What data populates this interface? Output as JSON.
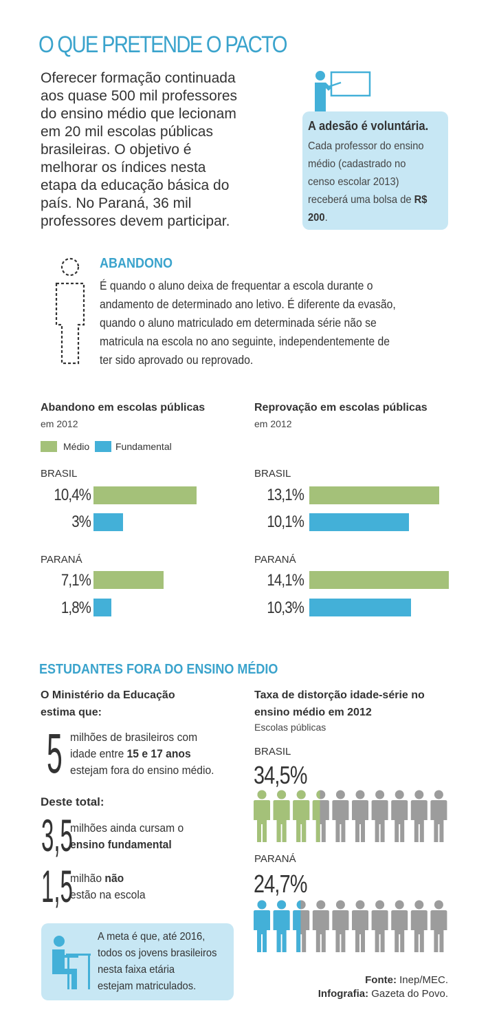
{
  "title": "O QUE PRETENDE O PACTO",
  "intro": {
    "lines": [
      "Oferecer formação continuada",
      "aos quase 500 mil professores",
      "do ensino médio que lecionam",
      "em 20 mil escolas públicas",
      "brasileiras. O objetivo é",
      "melhorar os índices nesta",
      "etapa da educação básica do",
      "país. No Paraná, 36 mil",
      "professores devem participar."
    ]
  },
  "adesao": {
    "heading": "A adesão é voluntária.",
    "text": "Cada professor do ensino médio (cadastrado no censo escolar 2013) receberá uma bolsa de",
    "amount": "R$ 200",
    "end": "."
  },
  "abandono": {
    "heading": "ABANDONO",
    "lines": [
      "É quando o aluno deixa de frequentar a escola durante o",
      "andamento de determinado ano letivo. É diferente da evasão,",
      "quando o aluno matriculado em determinada série não se",
      "matricula na escola no ano seguinte, independentemente de",
      "ter sido aprovado ou reprovado."
    ]
  },
  "colors": {
    "medio": "#a4c179",
    "fundamental": "#43b0d8",
    "gray": "#9c9c9c",
    "accent": "#3aa3cc",
    "box": "#c7e7f4"
  },
  "legend": {
    "medio": "Médio",
    "fundamental": "Fundamental"
  },
  "chart_data": [
    {
      "type": "bar",
      "orientation": "horizontal",
      "title": "Abandono em escolas públicas",
      "subtitle": "em 2012",
      "groups": [
        {
          "name": "BRASIL",
          "labels": [
            "10,4%",
            "3%"
          ],
          "values": [
            10.4,
            3.0
          ]
        },
        {
          "name": "PARANÁ",
          "labels": [
            "7,1%",
            "1,8%"
          ],
          "values": [
            7.1,
            1.8
          ]
        }
      ],
      "series": [
        {
          "name": "Médio"
        },
        {
          "name": "Fundamental"
        }
      ],
      "xlim": [
        0,
        14.1
      ],
      "legend": "top-left"
    },
    {
      "type": "bar",
      "orientation": "horizontal",
      "title": "Reprovação em escolas públicas",
      "subtitle": "em 2012",
      "groups": [
        {
          "name": "BRASIL",
          "labels": [
            "13,1%",
            "10,1%"
          ],
          "values": [
            13.1,
            10.1
          ]
        },
        {
          "name": "PARANÁ",
          "labels": [
            "14,1%",
            "10,3%"
          ],
          "values": [
            14.1,
            10.3
          ]
        }
      ],
      "series": [
        {
          "name": "Médio"
        },
        {
          "name": "Fundamental"
        }
      ],
      "xlim": [
        0,
        14.1
      ]
    },
    {
      "type": "pictogram",
      "title": "Taxa de distorção idade-série no ensino médio em 2012",
      "subtitle": "Escolas públicas",
      "icons_per_row": 10,
      "groups": [
        {
          "name": "BRASIL",
          "label": "34,5%",
          "value": 34.5,
          "color": "#a4c179"
        },
        {
          "name": "PARANÁ",
          "label": "24,7%",
          "value": 24.7,
          "color": "#43b0d8"
        }
      ]
    }
  ],
  "estudantes": {
    "heading": "ESTUDANTES FORA DO ENSINO MÉDIO",
    "ministerio_l1": "O Ministério da Educação",
    "ministerio_l2": "estima que:",
    "n1": "5",
    "t1_l1": "milhões de brasileiros com",
    "t1_l2a": "idade entre ",
    "t1_l2b": "15 e 17 anos",
    "t1_l3": "estejam fora do ensino médio.",
    "deste": "Deste total:",
    "n2": "3,5",
    "t2_l1": "milhões ainda cursam o",
    "t2_l2": "ensino fundamental",
    "n3": "1,5",
    "t3_l1a": "milhão ",
    "t3_l1b": "não",
    "t3_l2": "estão na escola"
  },
  "meta": {
    "lines": [
      "A meta é que, até 2016,",
      "todos os jovens brasileiros",
      "nesta faixa etária",
      "estejam matriculados."
    ]
  },
  "source": {
    "fonte_label": "Fonte:",
    "fonte": " Inep/MEC.",
    "info_label": "Infografia:",
    "info": " Gazeta do Povo."
  }
}
